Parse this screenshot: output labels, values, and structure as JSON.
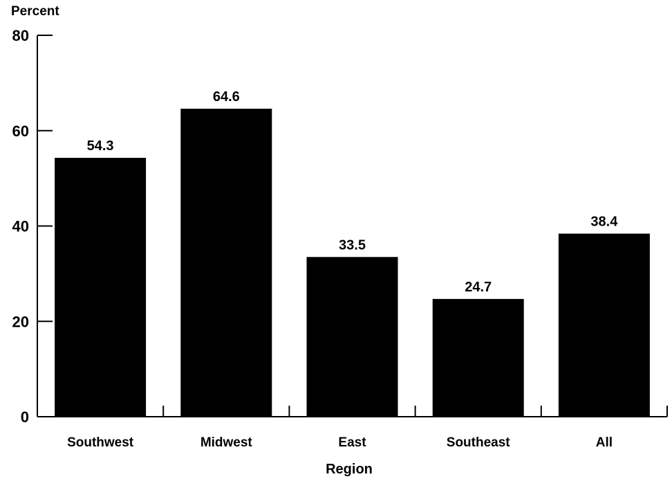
{
  "chart_data": {
    "type": "bar",
    "title": "",
    "ylabel": "Percent",
    "xlabel": "Region",
    "categories": [
      "Southwest",
      "Midwest",
      "East",
      "Southeast",
      "All"
    ],
    "values": [
      54.3,
      64.6,
      33.5,
      24.7,
      38.4
    ],
    "data_labels": [
      "54.3",
      "64.6",
      "33.5",
      "24.7",
      "38.4"
    ],
    "ylim": [
      0,
      80
    ],
    "yticks": [
      0,
      20,
      40,
      60,
      80
    ],
    "ytick_labels": [
      "0",
      "20",
      "40",
      "60",
      "80"
    ],
    "grid": false,
    "legend": "none",
    "bar_color": "#000000"
  }
}
